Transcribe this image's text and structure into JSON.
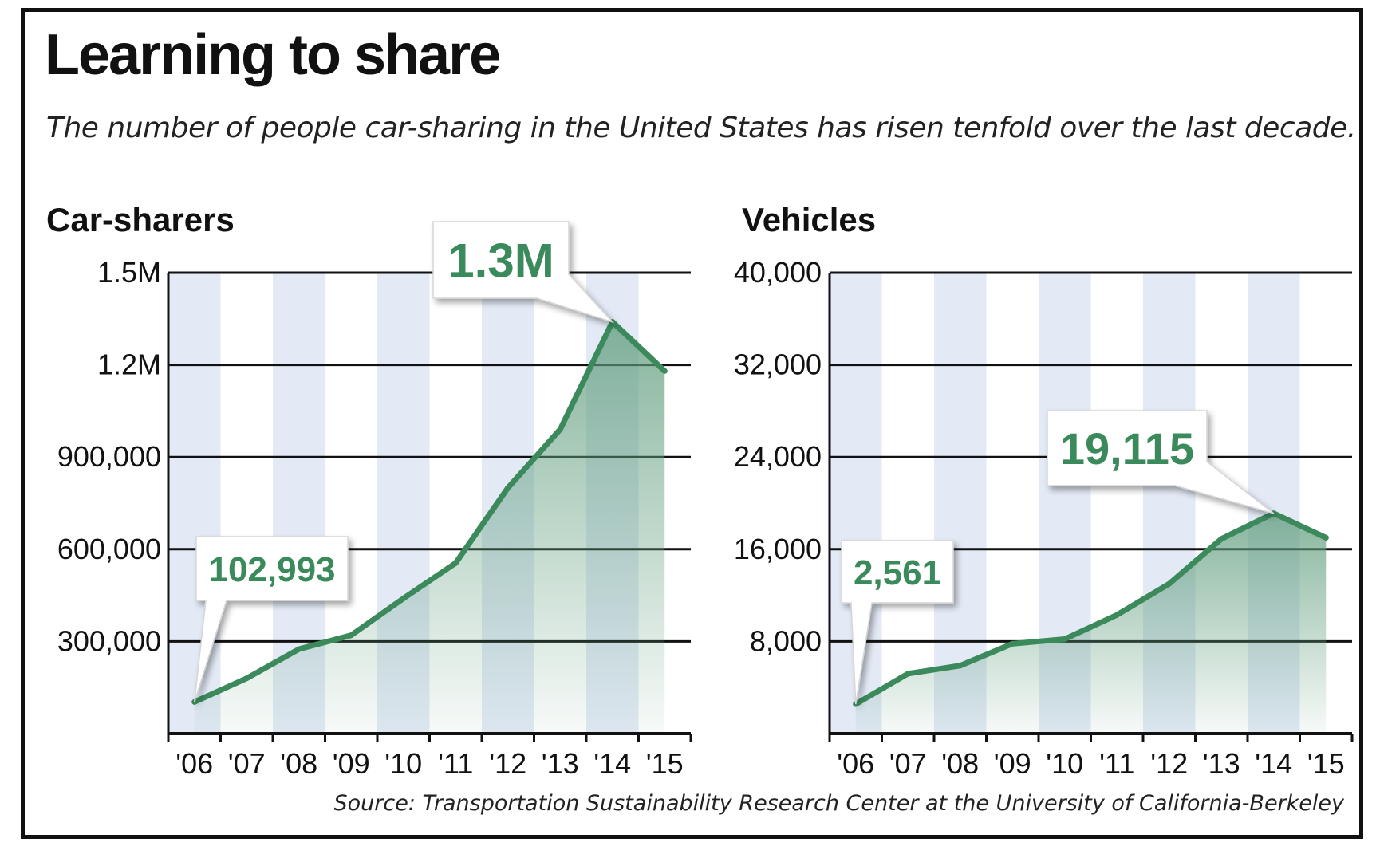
{
  "title": "Learning to share",
  "subtitle": "The number of people car-sharing in the United States has risen tenfold over the last decade.",
  "source": "Source: Transportation Sustainability Research Center at the University of California-Berkeley",
  "colors": {
    "line": "#3c8a5c",
    "band": "#e3eaf6",
    "callout_text": "#3a8a5b",
    "area_top": "#5f9c7c"
  },
  "chart_data": [
    {
      "type": "area",
      "title": "Car-sharers",
      "categories": [
        "'06",
        "'07",
        "'08",
        "'09",
        "'10",
        "'11",
        "'12",
        "'13",
        "'14",
        "'15"
      ],
      "values": [
        102993,
        180000,
        275000,
        320000,
        440000,
        555000,
        800000,
        990000,
        1340000,
        1180000
      ],
      "ylim": [
        0,
        1500000
      ],
      "yticks": [
        300000,
        600000,
        900000,
        1200000,
        1500000
      ],
      "ytick_labels": [
        "300,000",
        "600,000",
        "900,000",
        "1.2M",
        "1.5M"
      ],
      "grid": true,
      "annotations": [
        {
          "text": "102,993",
          "index": 0
        },
        {
          "text": "1.3M",
          "index": 8
        }
      ]
    },
    {
      "type": "area",
      "title": "Vehicles",
      "categories": [
        "'06",
        "'07",
        "'08",
        "'09",
        "'10",
        "'11",
        "'12",
        "'13",
        "'14",
        "'15"
      ],
      "values": [
        2561,
        5200,
        5900,
        7800,
        8200,
        10300,
        13000,
        16900,
        19115,
        17000
      ],
      "ylim": [
        0,
        40000
      ],
      "yticks": [
        8000,
        16000,
        24000,
        32000,
        40000
      ],
      "ytick_labels": [
        "8,000",
        "16,000",
        "24,000",
        "32,000",
        "40,000"
      ],
      "grid": true,
      "annotations": [
        {
          "text": "2,561",
          "index": 0
        },
        {
          "text": "19,115",
          "index": 8
        }
      ]
    }
  ]
}
